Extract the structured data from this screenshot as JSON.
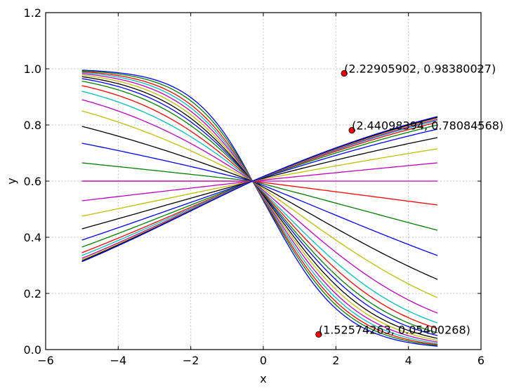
{
  "chart_data": {
    "type": "line",
    "xlabel": "x",
    "ylabel": "y",
    "xlim": [
      -6,
      6
    ],
    "ylim": [
      0.0,
      1.2
    ],
    "x_ticks": [
      -6,
      -4,
      -2,
      0,
      2,
      4,
      6
    ],
    "y_ticks": [
      0.0,
      0.2,
      0.4,
      0.6,
      0.8,
      1.0,
      1.2
    ],
    "x_tick_labels": [
      "−6",
      "−4",
      "−2",
      "0",
      "2",
      "4",
      "6"
    ],
    "y_tick_labels": [
      "0.0",
      "0.2",
      "0.4",
      "0.6",
      "0.8",
      "1.0",
      "1.2"
    ],
    "grid": true,
    "curve_family": {
      "x_range": [
        -5,
        4.8
      ],
      "center_x": -0.3,
      "center_y": 0.6,
      "descending_curves": [
        {
          "left": 0.995,
          "right": 0.012
        },
        {
          "left": 0.993,
          "right": 0.015
        },
        {
          "left": 0.99,
          "right": 0.018
        },
        {
          "left": 0.987,
          "right": 0.022
        },
        {
          "left": 0.983,
          "right": 0.027
        },
        {
          "left": 0.978,
          "right": 0.033
        },
        {
          "left": 0.972,
          "right": 0.04
        },
        {
          "left": 0.965,
          "right": 0.05
        },
        {
          "left": 0.956,
          "right": 0.06
        },
        {
          "left": 0.94,
          "right": 0.075
        },
        {
          "left": 0.92,
          "right": 0.095
        },
        {
          "left": 0.89,
          "right": 0.13
        },
        {
          "left": 0.85,
          "right": 0.185
        },
        {
          "left": 0.795,
          "right": 0.25
        },
        {
          "left": 0.735,
          "right": 0.335
        },
        {
          "left": 0.665,
          "right": 0.425
        },
        {
          "left": 0.6,
          "right": 0.515
        }
      ],
      "ascending_curves": [
        {
          "left": 0.6,
          "right": 0.6
        },
        {
          "left": 0.53,
          "right": 0.665
        },
        {
          "left": 0.475,
          "right": 0.715
        },
        {
          "left": 0.43,
          "right": 0.755
        },
        {
          "left": 0.39,
          "right": 0.785
        },
        {
          "left": 0.365,
          "right": 0.8
        },
        {
          "left": 0.345,
          "right": 0.81
        },
        {
          "left": 0.335,
          "right": 0.816
        },
        {
          "left": 0.325,
          "right": 0.82
        },
        {
          "left": 0.32,
          "right": 0.824
        },
        {
          "left": 0.316,
          "right": 0.827
        },
        {
          "left": 0.313,
          "right": 0.83
        }
      ]
    },
    "points": [
      {
        "x": 2.22905902,
        "y": 0.98380027,
        "label": "(2.22905902, 0.98380027)"
      },
      {
        "x": 2.44098394,
        "y": 0.78084568,
        "label": "(2.44098394, 0.78084568)"
      },
      {
        "x": 1.52574263,
        "y": 0.05400268,
        "label": "(1.52574263, 0.05400268)"
      }
    ],
    "point_color": "#ff0000",
    "line_colors": [
      "#0000ff",
      "#008000",
      "#ff0000",
      "#00bfbf",
      "#bf00bf",
      "#bfbf00",
      "#000000"
    ]
  }
}
